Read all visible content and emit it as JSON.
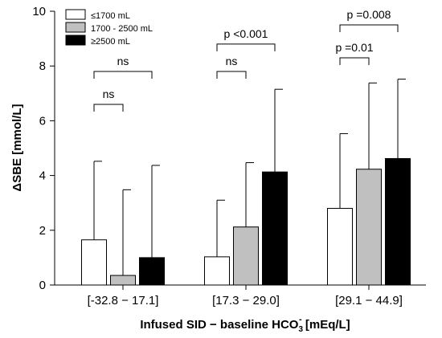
{
  "chart_data": {
    "type": "bar",
    "xlabel": "Infused SID − baseline HCO",
    "xlabel_sub": "3",
    "xlabel_sup": "-",
    "xlabel_tail": " [mEq/L]",
    "ylabel": "ΔSBE [mmol/L]",
    "ylim": [
      0,
      10
    ],
    "yticks": [
      0,
      2,
      4,
      6,
      8,
      10
    ],
    "grid": false,
    "legend_position": "top-left",
    "categories": [
      "[-32.8 − 17.1]",
      "[17.3 − 29.0]",
      "[29.1 − 44.9]"
    ],
    "series": [
      {
        "name": "≤1700 mL",
        "color": "#ffffff",
        "values": [
          1.65,
          1.03,
          2.8
        ],
        "error": [
          4.52,
          3.1,
          5.53
        ]
      },
      {
        "name": "1700 - 2500 mL",
        "color": "#c0c0c0",
        "values": [
          0.35,
          2.12,
          4.23
        ],
        "error": [
          3.48,
          4.47,
          7.38
        ]
      },
      {
        "name": "≥2500 mL",
        "color": "#000000",
        "values": [
          1.0,
          4.13,
          4.62
        ],
        "error": [
          4.37,
          7.15,
          7.52
        ]
      }
    ],
    "annotations": [
      {
        "label": "ns",
        "category": 0,
        "from": 0,
        "to": 1,
        "y": 6.6
      },
      {
        "label": "ns",
        "category": 0,
        "from": 0,
        "to": 2,
        "y": 7.8
      },
      {
        "label": "ns",
        "category": 1,
        "from": 0,
        "to": 1,
        "y": 7.8
      },
      {
        "label": "p <0.001",
        "category": 1,
        "from": 0,
        "to": 2,
        "y": 8.8
      },
      {
        "label": "p =0.01",
        "category": 2,
        "from": 0,
        "to": 1,
        "y": 8.3
      },
      {
        "label": "p =0.008",
        "category": 2,
        "from": 0,
        "to": 2,
        "y": 9.5
      }
    ]
  }
}
